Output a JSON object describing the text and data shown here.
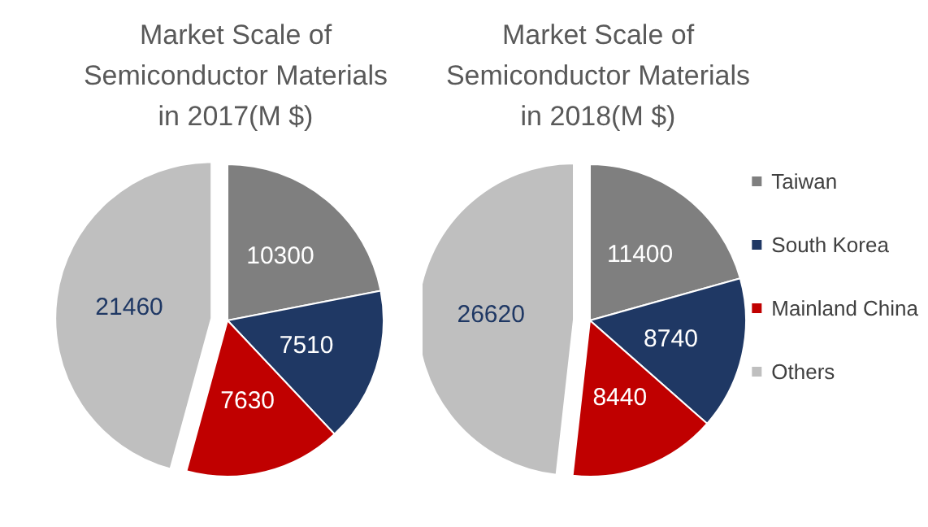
{
  "chart_data": [
    {
      "type": "pie",
      "title": "Market Scale of\nSemiconductor Materials\nin 2017(M $)",
      "categories": [
        null,
        null,
        null,
        null
      ],
      "values": [
        10300,
        7510,
        7630,
        21460
      ],
      "colors": [
        "#7f7f7f",
        "#1f3864",
        "#c00000",
        "#bfbfbf"
      ],
      "data_labels": true,
      "legend": false
    },
    {
      "type": "pie",
      "title": "Market Scale of\nSemiconductor Materials\nin 2018(M $)",
      "categories": [
        "Taiwan",
        "South Korea",
        "Mainland China",
        "Others"
      ],
      "values": [
        11400,
        8740,
        8440,
        26620
      ],
      "colors": [
        "#7f7f7f",
        "#1f3864",
        "#c00000",
        "#bfbfbf"
      ],
      "data_labels": true,
      "legend": "right"
    }
  ]
}
